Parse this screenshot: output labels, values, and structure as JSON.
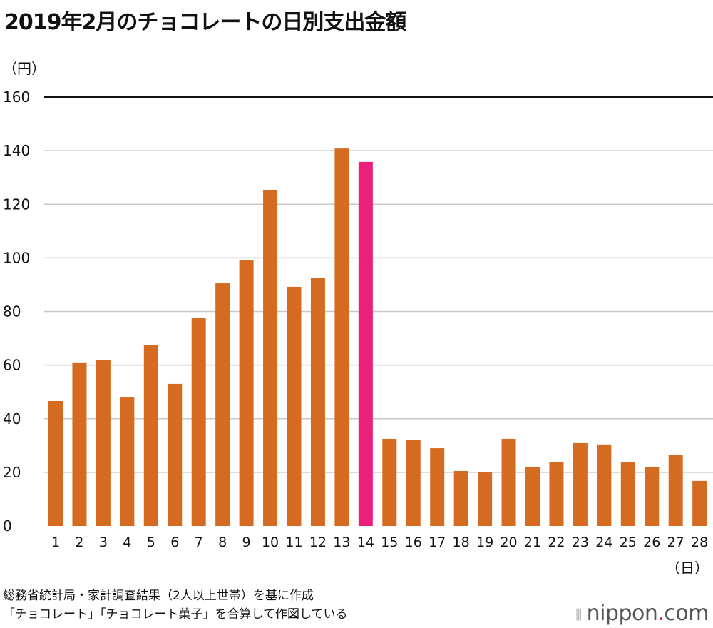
{
  "chart_data": {
    "type": "bar",
    "title": "2019年2月のチョコレートの日別支出金額",
    "ylabel": "（円）",
    "xlabel": "（日）",
    "ylim": [
      0,
      160
    ],
    "yticks": [
      0,
      20,
      40,
      60,
      80,
      100,
      120,
      140,
      160
    ],
    "grid": true,
    "categories": [
      "1",
      "2",
      "3",
      "4",
      "5",
      "6",
      "7",
      "8",
      "9",
      "10",
      "11",
      "12",
      "13",
      "14",
      "15",
      "16",
      "17",
      "18",
      "19",
      "20",
      "21",
      "22",
      "23",
      "24",
      "25",
      "26",
      "27",
      "28"
    ],
    "values": [
      46.6,
      61.0,
      62.0,
      47.9,
      67.6,
      53.0,
      77.7,
      90.5,
      99.3,
      125.4,
      89.2,
      92.4,
      140.8,
      135.8,
      32.5,
      32.2,
      29.0,
      20.5,
      20.2,
      32.5,
      22.1,
      23.7,
      30.9,
      30.4,
      23.7,
      22.1,
      26.4,
      16.8
    ],
    "highlight_index": 13,
    "colors": {
      "bar": "#d56b20",
      "highlight": "#ec1f7a",
      "grid": "#c8c8c8",
      "top_line": "#111111"
    }
  },
  "footer": {
    "source_line1": "総務省統計局・家計調査結果（2人以上世帯）を基に作成",
    "source_line2": "「チョコレート」「チョコレート菓子」を合算して作図している",
    "logo_main": "nippon",
    "logo_dot": ".",
    "logo_tld": "com"
  }
}
